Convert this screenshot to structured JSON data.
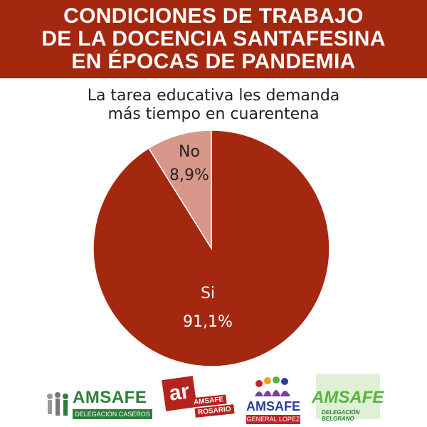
{
  "header": {
    "lines": [
      "CONDICIONES DE TRABAJO",
      "DE LA DOCENCIA SANTAFESINA",
      "EN ÉPOCAS DE PANDEMIA"
    ],
    "background": "#a3280f"
  },
  "chart_data": {
    "type": "pie",
    "title_lines": [
      "La tarea educativa les demanda",
      "más tiempo en cuarentena"
    ],
    "slices": [
      {
        "label": "Si",
        "value": 91.1,
        "display": "91,1%",
        "color": "#a3280f",
        "text_color": "#ffffff"
      },
      {
        "label": "No",
        "value": 8.9,
        "display": "8,9%",
        "color": "#d9968a",
        "text_color": "#222222"
      }
    ],
    "start_angle": "12 o'clock",
    "direction": "counter-clockwise for No slice"
  },
  "logos": {
    "caseros": {
      "name": "AMSAFE",
      "sub": "DELEGACIÓN CASEROS",
      "color": "#2f7d3a"
    },
    "rosario": {
      "mark": "ar",
      "name": "AMSAFE",
      "sub": "ROSARIO",
      "color": "#b5231d"
    },
    "lopez": {
      "name": "AMSAFE",
      "sub": "GENERAL LOPEZ",
      "color": "#2a3f97"
    },
    "belgrano": {
      "name": "AMSAFE",
      "sub": "DELEGACIÓN BELGRANO",
      "color": "#59b33d"
    }
  }
}
